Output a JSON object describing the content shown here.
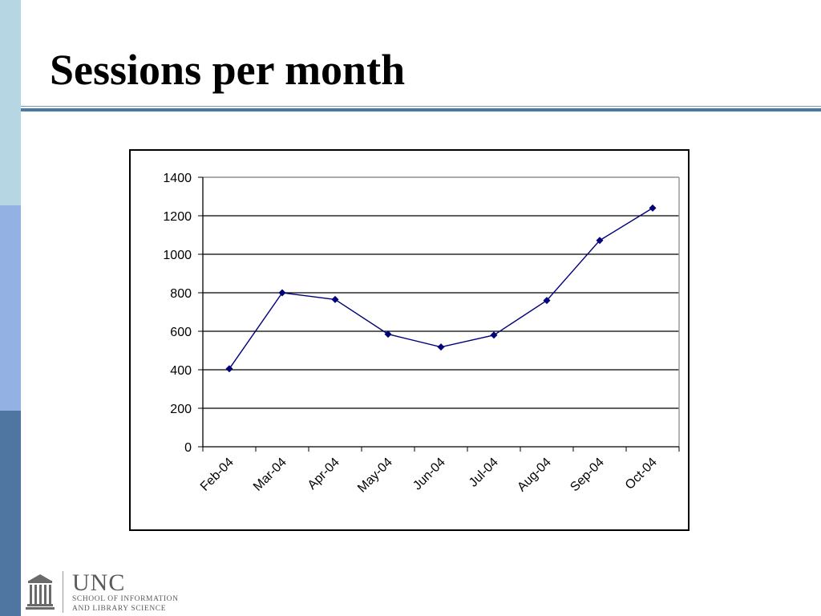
{
  "slide": {
    "title": "Sessions per month"
  },
  "footer": {
    "logo_text": "UNC",
    "logo_sub1": "SCHOOL OF INFORMATION",
    "logo_sub2": "AND LIBRARY SCIENCE"
  },
  "chart_data": {
    "type": "line",
    "categories": [
      "Feb-04",
      "Mar-04",
      "Apr-04",
      "May-04",
      "Jun-04",
      "Jul-04",
      "Aug-04",
      "Sep-04",
      "Oct-04"
    ],
    "series": [
      {
        "values": [
          405,
          800,
          765,
          585,
          518,
          580,
          760,
          1072,
          1240
        ],
        "color": "#00007a"
      }
    ],
    "yticks": [
      0,
      200,
      400,
      600,
      800,
      1000,
      1200,
      1400
    ],
    "ylim": [
      0,
      1400
    ],
    "grid": true,
    "legend": false,
    "colors": {
      "line": "#00007a",
      "marker": "#00007a",
      "gridline": "#000000",
      "frame": "#000000"
    }
  }
}
